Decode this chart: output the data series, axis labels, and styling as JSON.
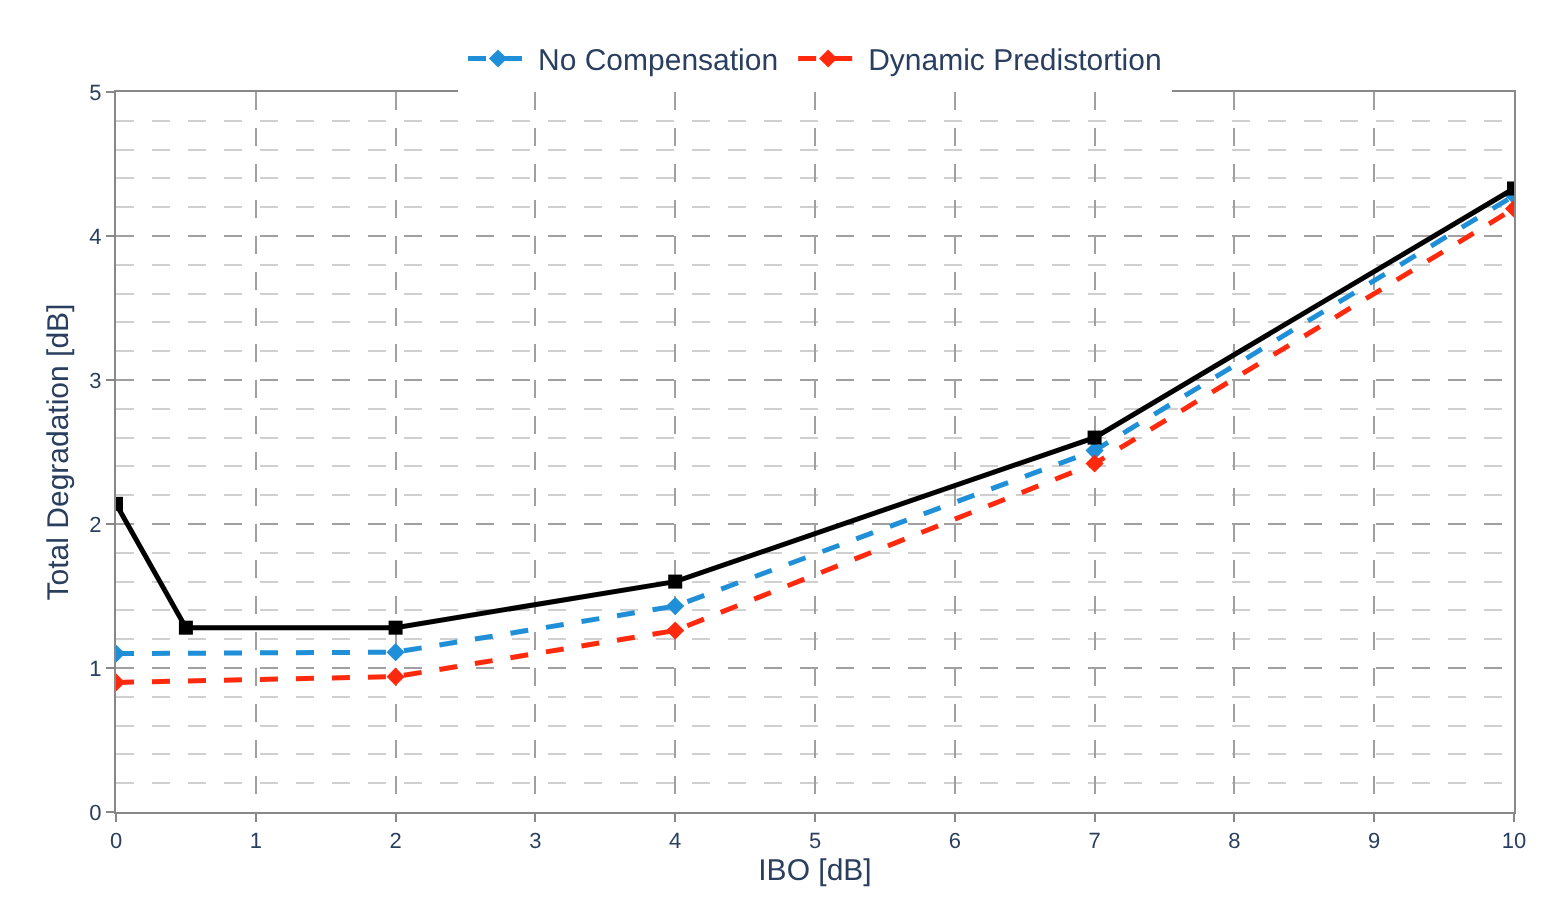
{
  "chart_data": {
    "type": "line",
    "xlabel": "IBO [dB]",
    "ylabel": "Total Degradation [dB]",
    "xlim": [
      0,
      10
    ],
    "xticks": [
      0,
      1,
      2,
      3,
      4,
      5,
      6,
      7,
      8,
      9,
      10
    ],
    "ylim": [
      0,
      5
    ],
    "yticks": [
      0,
      1,
      2,
      3,
      4,
      5
    ],
    "grid": true,
    "legend": "top",
    "series": [
      {
        "name": "No Compensation",
        "color": "#1f8fd8",
        "marker": "diamond",
        "line_style": "dashed",
        "x": [
          0,
          2,
          4,
          7,
          10
        ],
        "values": [
          1.1,
          1.11,
          1.43,
          2.51,
          4.28
        ]
      },
      {
        "name": "Dynamic Predistortion",
        "color": "#ff2a0e",
        "marker": "diamond",
        "line_style": "dashed",
        "x": [
          0,
          2,
          4,
          7,
          10
        ],
        "values": [
          0.9,
          0.94,
          1.26,
          2.42,
          4.19
        ]
      },
      {
        "color": "#000000",
        "marker": "square",
        "line_style": "solid",
        "x": [
          0,
          0.5,
          2,
          4,
          7,
          10
        ],
        "values": [
          2.14,
          1.28,
          1.28,
          1.6,
          2.6,
          4.33
        ]
      }
    ]
  }
}
